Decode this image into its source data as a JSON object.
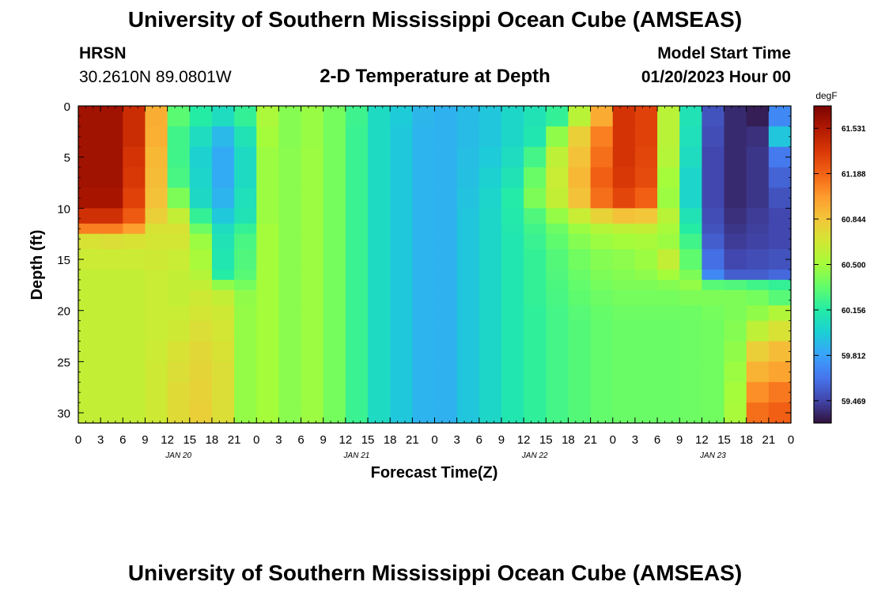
{
  "header": {
    "title": "University of Southern Mississippi Ocean Cube (AMSEAS)",
    "station": "HRSN",
    "coords": "30.2610N  89.0801W",
    "plot_title": "2-D Temperature at Depth",
    "model_label": "Model Start Time",
    "model_time": "01/20/2023 Hour 00",
    "footer_title": "University of Southern Mississippi Ocean Cube (AMSEAS)"
  },
  "chart_data": {
    "type": "heatmap",
    "title": "2-D Temperature at Depth",
    "xlabel": "Forecast Time(Z)",
    "ylabel": "Depth (ft)",
    "x_tick_labels": [
      "0",
      "3",
      "6",
      "9",
      "12",
      "15",
      "18",
      "21",
      "0",
      "3",
      "6",
      "9",
      "12",
      "15",
      "18",
      "21",
      "0",
      "3",
      "6",
      "9",
      "12",
      "15",
      "18",
      "21",
      "0",
      "3",
      "6",
      "9",
      "12",
      "15",
      "18",
      "21",
      "0"
    ],
    "day_labels": [
      "JAN 20",
      "JAN 21",
      "JAN 22",
      "JAN 23"
    ],
    "y_ticks": [
      0,
      5,
      10,
      15,
      20,
      25,
      30
    ],
    "ylim": [
      0,
      31
    ],
    "xlim_hours": [
      0,
      96
    ],
    "colorbar": {
      "unit": "degF",
      "min": 59.3,
      "max": 61.7,
      "tick_values": [
        61.531,
        61.188,
        60.844,
        60.5,
        60.156,
        59.812,
        59.469
      ],
      "tick_labels": [
        "61.531",
        "61.188",
        "60.844",
        "60.500",
        "60.156",
        "59.812",
        "59.469"
      ],
      "colormap": [
        "#30123b",
        "#4145ab",
        "#4675ed",
        "#39a2fc",
        "#1bcfd4",
        "#24eca6",
        "#61fc6c",
        "#a4fc3b",
        "#d1e834",
        "#f3c63a",
        "#fe9b2d",
        "#f36315",
        "#d93806",
        "#b11901",
        "#7a0402"
      ]
    },
    "depth_breaks": [
      0,
      2,
      4,
      6,
      8,
      10,
      11.5,
      12.5,
      14,
      16,
      17,
      18,
      19.5,
      21,
      23,
      25,
      27,
      29,
      31
    ],
    "hour_step": 3,
    "temperature_grid_degF": [
      [
        61.58,
        61.58,
        61.42,
        60.94,
        60.31,
        60.16,
        60.06,
        60.2,
        60.53,
        60.42,
        60.47,
        60.38,
        60.23,
        60.05,
        59.97,
        59.89,
        59.87,
        59.91,
        59.95,
        60.03,
        60.1,
        60.2,
        60.58,
        60.95,
        61.38,
        61.32,
        60.58,
        60.1,
        59.52,
        59.38,
        59.34,
        59.72
      ],
      [
        61.58,
        61.58,
        61.42,
        60.93,
        60.24,
        60.06,
        59.9,
        60.1,
        60.5,
        60.42,
        60.47,
        60.38,
        60.22,
        60.05,
        59.96,
        59.88,
        59.87,
        59.91,
        59.95,
        60.03,
        60.12,
        60.45,
        60.8,
        61.1,
        61.38,
        61.32,
        60.58,
        60.08,
        59.5,
        59.38,
        59.4,
        59.95
      ],
      [
        61.58,
        61.58,
        61.38,
        60.9,
        60.24,
        60.0,
        59.85,
        60.05,
        60.48,
        60.43,
        60.48,
        60.38,
        60.22,
        60.05,
        59.96,
        59.88,
        59.87,
        59.92,
        59.97,
        60.06,
        60.25,
        60.6,
        60.86,
        61.15,
        61.38,
        61.3,
        60.56,
        60.06,
        59.48,
        59.38,
        59.42,
        59.66
      ],
      [
        61.58,
        61.58,
        61.36,
        60.88,
        60.26,
        60.02,
        59.85,
        60.05,
        60.48,
        60.43,
        60.48,
        60.38,
        60.22,
        60.05,
        59.96,
        59.88,
        59.87,
        59.93,
        60.0,
        60.1,
        60.35,
        60.64,
        60.9,
        61.2,
        61.36,
        61.28,
        60.5,
        60.02,
        59.48,
        59.38,
        59.42,
        59.58
      ],
      [
        61.56,
        61.56,
        61.32,
        60.86,
        60.4,
        60.04,
        59.88,
        60.08,
        60.48,
        60.43,
        60.48,
        60.38,
        60.22,
        60.05,
        59.96,
        59.88,
        59.87,
        59.94,
        60.02,
        60.15,
        60.4,
        60.62,
        60.86,
        61.15,
        61.3,
        61.2,
        60.48,
        60.02,
        59.48,
        59.38,
        59.42,
        59.52
      ],
      [
        61.4,
        61.4,
        61.22,
        60.8,
        60.62,
        60.2,
        59.96,
        60.1,
        60.48,
        60.43,
        60.48,
        60.38,
        60.22,
        60.05,
        59.96,
        59.88,
        59.87,
        59.95,
        60.03,
        60.14,
        60.28,
        60.46,
        60.64,
        60.78,
        60.86,
        60.84,
        60.58,
        60.1,
        59.5,
        59.4,
        59.44,
        59.48
      ],
      [
        61.1,
        61.1,
        61.0,
        60.7,
        60.7,
        60.36,
        60.06,
        60.2,
        60.5,
        60.43,
        60.48,
        60.38,
        60.22,
        60.05,
        59.96,
        59.88,
        59.87,
        59.95,
        60.03,
        60.13,
        60.24,
        60.36,
        60.48,
        60.56,
        60.6,
        60.62,
        60.52,
        60.16,
        59.52,
        59.42,
        59.45,
        59.48
      ],
      [
        60.7,
        60.72,
        60.7,
        60.68,
        60.68,
        60.48,
        60.1,
        60.26,
        60.5,
        60.43,
        60.48,
        60.38,
        60.22,
        60.05,
        59.96,
        59.88,
        59.87,
        59.95,
        60.03,
        60.12,
        60.22,
        60.32,
        60.42,
        60.48,
        60.5,
        60.52,
        60.48,
        60.24,
        59.56,
        59.44,
        59.46,
        59.48
      ],
      [
        60.65,
        60.65,
        60.65,
        60.66,
        60.64,
        60.52,
        60.12,
        60.28,
        60.5,
        60.43,
        60.48,
        60.38,
        60.22,
        60.05,
        59.96,
        59.88,
        59.87,
        59.95,
        60.03,
        60.12,
        60.2,
        60.29,
        60.37,
        60.42,
        60.44,
        60.48,
        60.62,
        60.32,
        59.62,
        59.48,
        59.5,
        59.52
      ],
      [
        60.62,
        60.62,
        60.62,
        60.64,
        60.62,
        60.56,
        60.16,
        60.3,
        60.5,
        60.43,
        60.48,
        60.38,
        60.22,
        60.05,
        59.96,
        59.88,
        59.87,
        59.95,
        60.03,
        60.12,
        60.2,
        60.28,
        60.35,
        60.4,
        60.42,
        60.44,
        60.5,
        60.4,
        59.72,
        59.56,
        59.56,
        59.6
      ],
      [
        60.62,
        60.62,
        60.62,
        60.64,
        60.62,
        60.62,
        60.45,
        60.38,
        60.5,
        60.43,
        60.48,
        60.38,
        60.22,
        60.05,
        59.96,
        59.88,
        59.87,
        59.95,
        60.03,
        60.12,
        60.2,
        60.27,
        60.33,
        60.38,
        60.4,
        60.4,
        60.42,
        60.46,
        60.3,
        60.28,
        60.24,
        60.2
      ],
      [
        60.62,
        60.62,
        60.62,
        60.64,
        60.62,
        60.66,
        60.62,
        60.45,
        60.5,
        60.43,
        60.48,
        60.38,
        60.22,
        60.05,
        59.96,
        59.88,
        59.87,
        59.95,
        60.03,
        60.12,
        60.2,
        60.26,
        60.32,
        60.36,
        60.38,
        60.38,
        60.38,
        60.4,
        60.4,
        60.4,
        60.38,
        60.3
      ],
      [
        60.62,
        60.62,
        60.62,
        60.64,
        60.64,
        60.68,
        60.66,
        60.46,
        60.5,
        60.43,
        60.48,
        60.38,
        60.22,
        60.05,
        59.96,
        59.88,
        59.87,
        59.95,
        60.03,
        60.12,
        60.19,
        60.25,
        60.3,
        60.34,
        60.36,
        60.36,
        60.36,
        60.36,
        60.38,
        60.4,
        60.45,
        60.55
      ],
      [
        60.62,
        60.62,
        60.62,
        60.64,
        60.66,
        60.72,
        60.68,
        60.46,
        60.5,
        60.43,
        60.48,
        60.38,
        60.22,
        60.05,
        59.96,
        59.88,
        59.87,
        59.95,
        60.03,
        60.12,
        60.19,
        60.25,
        60.29,
        60.33,
        60.35,
        60.35,
        60.35,
        60.36,
        60.37,
        60.42,
        60.6,
        60.7
      ],
      [
        60.62,
        60.62,
        60.62,
        60.65,
        60.7,
        60.75,
        60.7,
        60.46,
        60.5,
        60.43,
        60.48,
        60.38,
        60.22,
        60.05,
        59.96,
        59.88,
        59.87,
        59.95,
        60.03,
        60.12,
        60.19,
        60.25,
        60.29,
        60.33,
        60.35,
        60.35,
        60.35,
        60.36,
        60.37,
        60.45,
        60.8,
        60.88
      ],
      [
        60.62,
        60.62,
        60.62,
        60.66,
        60.72,
        60.77,
        60.72,
        60.46,
        60.5,
        60.43,
        60.48,
        60.38,
        60.22,
        60.05,
        59.96,
        59.88,
        59.87,
        59.95,
        60.03,
        60.12,
        60.19,
        60.25,
        60.29,
        60.33,
        60.35,
        60.35,
        60.35,
        60.36,
        60.37,
        60.48,
        60.92,
        60.98
      ],
      [
        60.62,
        60.62,
        60.62,
        60.66,
        60.74,
        60.78,
        60.72,
        60.46,
        60.5,
        60.43,
        60.48,
        60.38,
        60.22,
        60.05,
        59.96,
        59.88,
        59.87,
        59.95,
        60.03,
        60.12,
        60.19,
        60.25,
        60.29,
        60.33,
        60.35,
        60.35,
        60.35,
        60.36,
        60.37,
        60.5,
        61.05,
        61.12
      ],
      [
        60.62,
        60.62,
        60.62,
        60.66,
        60.74,
        60.8,
        60.72,
        60.46,
        60.5,
        60.43,
        60.48,
        60.38,
        60.22,
        60.05,
        59.96,
        59.88,
        59.87,
        59.95,
        60.03,
        60.12,
        60.19,
        60.25,
        60.29,
        60.33,
        60.35,
        60.35,
        60.35,
        60.36,
        60.37,
        60.52,
        61.15,
        61.2
      ]
    ]
  }
}
